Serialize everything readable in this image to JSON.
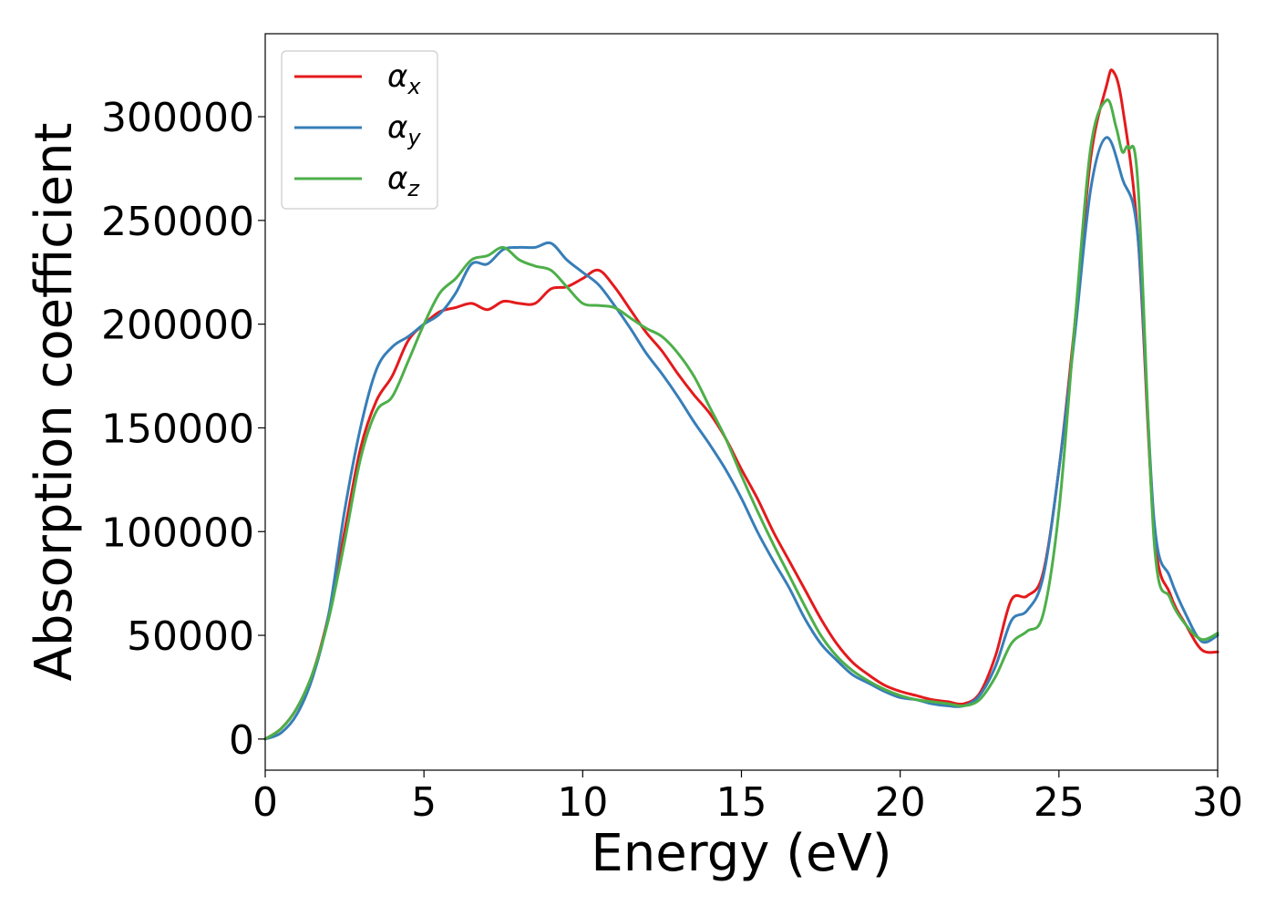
{
  "chart_data": {
    "type": "line",
    "title": "",
    "xlabel": "Energy (eV)",
    "ylabel": "Absorption coefficient",
    "xlim": [
      0,
      30
    ],
    "ylim": [
      -15000,
      340000
    ],
    "xticks": [
      0,
      5,
      10,
      15,
      20,
      25,
      30
    ],
    "yticks": [
      0,
      50000,
      100000,
      150000,
      200000,
      250000,
      300000
    ],
    "xtick_labels": [
      "0",
      "5",
      "10",
      "15",
      "20",
      "25",
      "30"
    ],
    "ytick_labels": [
      "0",
      "50000",
      "100000",
      "150000",
      "200000",
      "250000",
      "300000"
    ],
    "grid": false,
    "legend_position": "top-left",
    "series": [
      {
        "name": "α",
        "subscript": "x",
        "color": "#e41a1c",
        "x": [
          0,
          0.5,
          1,
          1.5,
          2,
          2.5,
          3,
          3.5,
          4,
          4.5,
          5,
          5.5,
          6,
          6.5,
          7,
          7.5,
          8,
          8.5,
          9,
          9.5,
          10,
          10.5,
          11,
          11.5,
          12,
          12.5,
          13,
          13.5,
          14,
          14.5,
          15,
          15.5,
          16,
          16.5,
          17,
          17.5,
          18,
          18.5,
          19,
          19.5,
          20,
          20.5,
          21,
          21.5,
          22,
          22.5,
          23,
          23.5,
          24,
          24.5,
          25,
          25.5,
          26,
          26.5,
          26.7,
          27,
          27.5,
          28,
          28.5,
          29,
          29.5,
          30
        ],
        "values": [
          0,
          5000,
          15000,
          32000,
          60000,
          100000,
          140000,
          163000,
          175000,
          192000,
          200000,
          206000,
          208000,
          210000,
          207000,
          211000,
          210000,
          210000,
          217000,
          218000,
          222000,
          226000,
          218000,
          207000,
          196000,
          187000,
          176000,
          166000,
          157000,
          145000,
          130000,
          116000,
          100000,
          86000,
          72000,
          58000,
          46000,
          37000,
          31000,
          26000,
          23000,
          21000,
          19000,
          18000,
          17000,
          22000,
          40000,
          67000,
          69000,
          80000,
          130000,
          200000,
          280000,
          315000,
          322000,
          305000,
          240000,
          100000,
          70000,
          55000,
          43000,
          42000
        ]
      },
      {
        "name": "α",
        "subscript": "y",
        "color": "#377eb8",
        "x": [
          0,
          0.5,
          1,
          1.5,
          2,
          2.5,
          3,
          3.5,
          4,
          4.5,
          5,
          5.5,
          6,
          6.5,
          7,
          7.5,
          8,
          8.5,
          9,
          9.5,
          10,
          10.5,
          11,
          11.5,
          12,
          12.5,
          13,
          13.5,
          14,
          14.5,
          15,
          15.5,
          16,
          16.5,
          17,
          17.5,
          18,
          18.5,
          19,
          19.5,
          20,
          20.5,
          21,
          21.5,
          22,
          22.5,
          23,
          23.5,
          24,
          24.5,
          25,
          25.5,
          26,
          26.5,
          27,
          27.5,
          28,
          28.5,
          29,
          29.5,
          30
        ],
        "values": [
          0,
          3000,
          12000,
          30000,
          60000,
          110000,
          150000,
          178000,
          189000,
          194000,
          200000,
          205000,
          215000,
          229000,
          229000,
          236000,
          237000,
          237000,
          239000,
          231000,
          225000,
          219000,
          209000,
          198000,
          186000,
          176000,
          165000,
          153000,
          142000,
          130000,
          116000,
          100000,
          86000,
          73000,
          58000,
          46000,
          38000,
          31000,
          27000,
          23000,
          20000,
          19000,
          17000,
          16000,
          16000,
          21000,
          35000,
          57000,
          62000,
          78000,
          130000,
          195000,
          265000,
          290000,
          270000,
          240000,
          105000,
          78000,
          60000,
          47000,
          50000
        ]
      },
      {
        "name": "α",
        "subscript": "z",
        "color": "#4daf4a",
        "x": [
          0,
          0.5,
          1,
          1.5,
          2,
          2.5,
          3,
          3.5,
          4,
          4.5,
          5,
          5.5,
          6,
          6.5,
          7,
          7.5,
          8,
          8.5,
          9,
          9.5,
          10,
          10.5,
          11,
          11.5,
          12,
          12.5,
          13,
          13.5,
          14,
          14.5,
          15,
          15.5,
          16,
          16.5,
          17,
          17.5,
          18,
          18.5,
          19,
          19.5,
          20,
          20.5,
          21,
          21.5,
          22,
          22.5,
          23,
          23.5,
          24,
          24.5,
          25,
          25.5,
          26,
          26.5,
          26.8,
          27,
          27.2,
          27.5,
          28,
          28.5,
          29,
          29.5,
          30
        ],
        "values": [
          0,
          5000,
          15000,
          32000,
          58000,
          95000,
          135000,
          158000,
          165000,
          182000,
          200000,
          215000,
          222000,
          231000,
          233000,
          237000,
          231000,
          228000,
          226000,
          218000,
          210000,
          209000,
          208000,
          203000,
          198000,
          194000,
          186000,
          175000,
          160000,
          145000,
          127000,
          110000,
          94000,
          79000,
          64000,
          50000,
          40000,
          33000,
          28000,
          24000,
          21000,
          19000,
          18000,
          17000,
          16000,
          19000,
          30000,
          46000,
          52000,
          60000,
          110000,
          200000,
          285000,
          308000,
          295000,
          283000,
          285000,
          265000,
          95000,
          68000,
          55000,
          48000,
          51000
        ]
      }
    ]
  }
}
